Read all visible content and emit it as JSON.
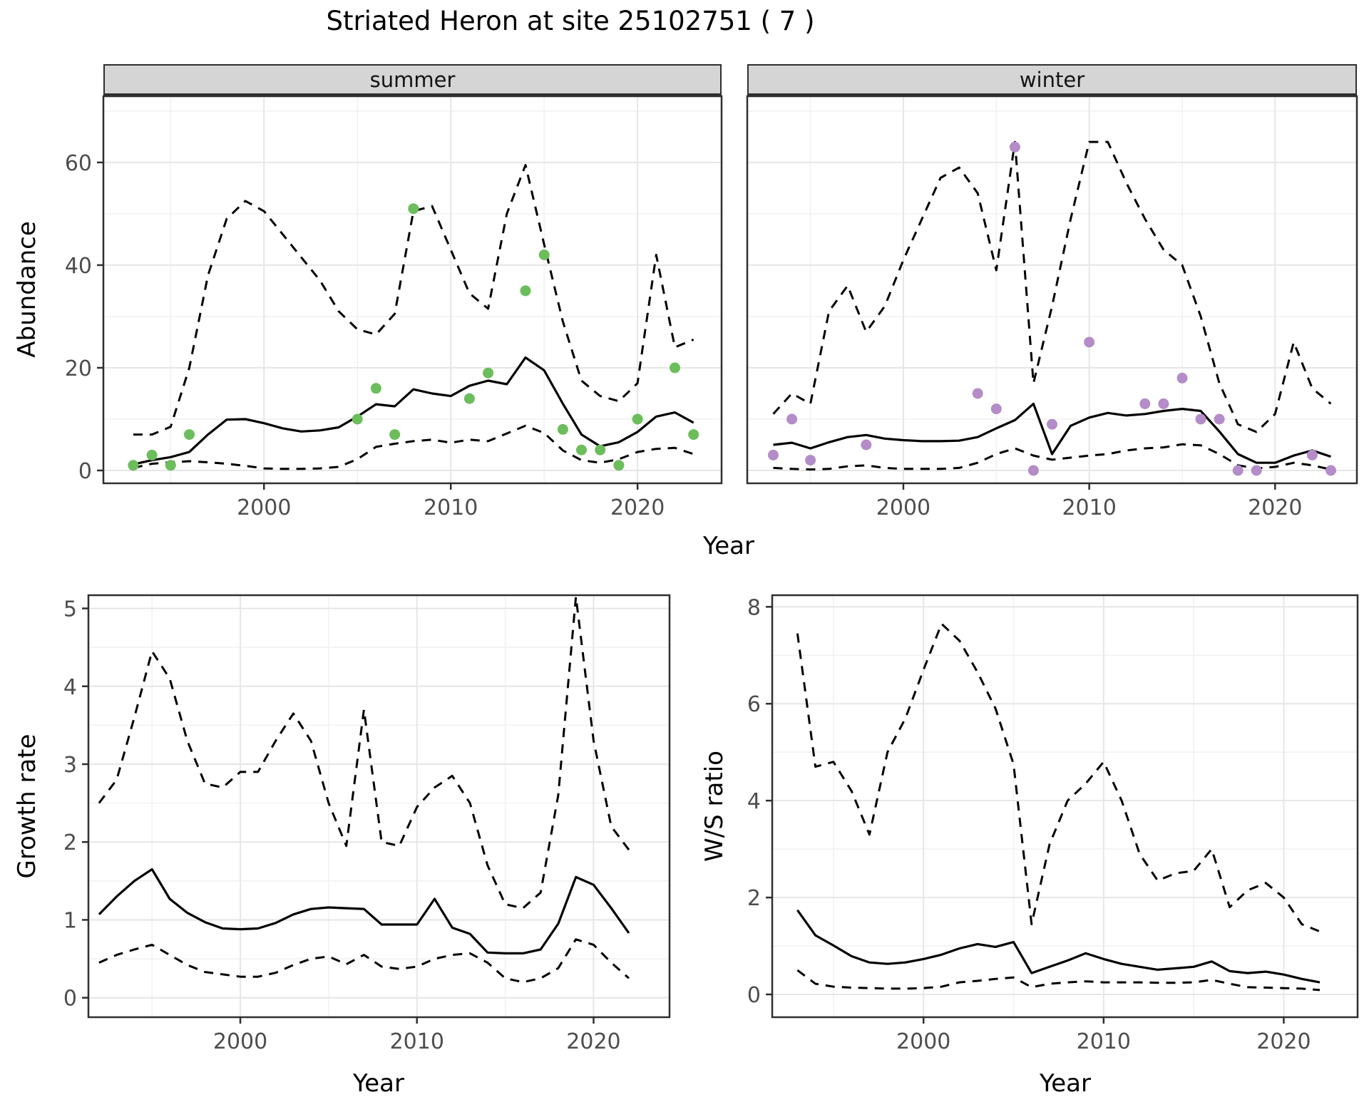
{
  "title": "Striated Heron at site 25102751 ( 7 )",
  "background": "#ffffff",
  "colors": {
    "summer_points": "#6bbe5b",
    "winter_points": "#b48cc8",
    "line": "#000000",
    "grid_major": "#e6e6e6",
    "grid_minor": "#f1f1f1",
    "panel_border": "#2f2f2f",
    "axis_text": "#4d4d4d",
    "strip_fill": "#d5d5d5"
  },
  "layout_labels": {
    "top_x_title": "Year"
  },
  "chart_data": [
    {
      "id": "abundance_summer",
      "type": "line",
      "facet": "summer",
      "xlabel": "Year",
      "ylabel": "Abundance",
      "xlim": [
        1991.4,
        2024.5
      ],
      "ylim": [
        -2.5,
        72.9
      ],
      "x_ticks": [
        2000,
        2010,
        2020
      ],
      "x_tick_labels": [
        "2000",
        "2010",
        "2020"
      ],
      "x_minor": [
        1995,
        2005,
        2015
      ],
      "y_ticks": [
        0,
        20,
        40,
        60
      ],
      "y_tick_labels": [
        "0",
        "20",
        "40",
        "60"
      ],
      "y_minor": [
        10,
        30,
        50,
        70
      ],
      "show_y_tick_labels": true,
      "grid": true,
      "legend": "none",
      "years": [
        1993,
        1994,
        1995,
        1996,
        1997,
        1998,
        1999,
        2000,
        2001,
        2002,
        2003,
        2004,
        2005,
        2006,
        2007,
        2008,
        2009,
        2010,
        2011,
        2012,
        2013,
        2014,
        2015,
        2016,
        2017,
        2018,
        2019,
        2020,
        2021,
        2022,
        2023
      ],
      "series": [
        {
          "name": "mean",
          "style": "solid",
          "values": [
            1.2,
            2.0,
            2.6,
            3.6,
            7.0,
            9.9,
            10.0,
            9.2,
            8.2,
            7.6,
            7.8,
            8.4,
            10.5,
            12.9,
            12.5,
            15.8,
            15.0,
            14.5,
            16.5,
            17.5,
            16.8,
            22.0,
            19.5,
            13.0,
            7.0,
            4.7,
            5.5,
            7.5,
            10.5,
            11.3,
            9.3
          ]
        },
        {
          "name": "upper_ci",
          "style": "dashed",
          "values": [
            7,
            7,
            8.5,
            20,
            38,
            49,
            52.5,
            50.5,
            46,
            41.5,
            37,
            31,
            27.5,
            26.5,
            30.5,
            50.5,
            51.5,
            43,
            34.5,
            31.5,
            50,
            59.5,
            44,
            29,
            17.5,
            14.5,
            13.5,
            17,
            42,
            24,
            25.5
          ]
        },
        {
          "name": "lower_ci",
          "style": "dashed",
          "values": [
            0.5,
            1.3,
            1.6,
            1.8,
            1.6,
            1.3,
            0.9,
            0.4,
            0.3,
            0.3,
            0.4,
            0.7,
            2.2,
            4.6,
            5.2,
            5.7,
            6.0,
            5.4,
            6.0,
            5.7,
            7.2,
            8.7,
            7.3,
            3.9,
            2.0,
            1.5,
            2.2,
            3.6,
            4.2,
            4.4,
            3.2
          ]
        }
      ],
      "points": [
        [
          1993,
          1
        ],
        [
          1994,
          3
        ],
        [
          1995,
          1
        ],
        [
          1996,
          7
        ],
        [
          2005,
          10
        ],
        [
          2006,
          16
        ],
        [
          2007,
          7
        ],
        [
          2008,
          51
        ],
        [
          2011,
          14
        ],
        [
          2012,
          19
        ],
        [
          2014,
          35
        ],
        [
          2015,
          42
        ],
        [
          2016,
          8
        ],
        [
          2017,
          4
        ],
        [
          2018,
          4
        ],
        [
          2019,
          1
        ],
        [
          2020,
          10
        ],
        [
          2022,
          20
        ],
        [
          2023,
          7
        ]
      ],
      "point_color": "#6bbe5b"
    },
    {
      "id": "abundance_winter",
      "type": "line",
      "facet": "winter",
      "xlabel": "Year",
      "ylabel": "Abundance",
      "xlim": [
        1991.6,
        2024.4
      ],
      "ylim": [
        -2.5,
        72.9
      ],
      "x_ticks": [
        2000,
        2010,
        2020
      ],
      "x_tick_labels": [
        "2000",
        "2010",
        "2020"
      ],
      "x_minor": [
        1995,
        2005,
        2015
      ],
      "y_ticks": [
        0,
        20,
        40,
        60
      ],
      "y_tick_labels": [
        "0",
        "20",
        "40",
        "60"
      ],
      "y_minor": [
        10,
        30,
        50,
        70
      ],
      "show_y_tick_labels": false,
      "grid": true,
      "legend": "none",
      "years": [
        1993,
        1994,
        1995,
        1996,
        1997,
        1998,
        1999,
        2000,
        2001,
        2002,
        2003,
        2004,
        2005,
        2006,
        2007,
        2008,
        2009,
        2010,
        2011,
        2012,
        2013,
        2014,
        2015,
        2016,
        2017,
        2018,
        2019,
        2020,
        2021,
        2022,
        2023
      ],
      "series": [
        {
          "name": "mean",
          "style": "solid",
          "values": [
            5.0,
            5.4,
            4.3,
            5.5,
            6.5,
            6.9,
            6.2,
            5.9,
            5.7,
            5.7,
            5.8,
            6.5,
            8.2,
            9.8,
            13.0,
            3.2,
            8.7,
            10.3,
            11.2,
            10.7,
            11.0,
            11.6,
            12.0,
            11.6,
            7.6,
            3.2,
            1.5,
            1.5,
            2.9,
            3.9,
            2.7
          ]
        },
        {
          "name": "upper_ci",
          "style": "dashed",
          "values": [
            11,
            15,
            13,
            31,
            36,
            27,
            32,
            41,
            49,
            57,
            59,
            54,
            39,
            64,
            17,
            32,
            49,
            64,
            64,
            56,
            49,
            43,
            40,
            30,
            17,
            9,
            7.5,
            11,
            25,
            16,
            13
          ]
        },
        {
          "name": "lower_ci",
          "style": "dashed",
          "values": [
            0.5,
            0.3,
            0.2,
            0.3,
            0.8,
            1.0,
            0.5,
            0.3,
            0.3,
            0.3,
            0.5,
            1.5,
            3.2,
            4.3,
            2.9,
            2.1,
            2.5,
            2.9,
            3.2,
            3.9,
            4.3,
            4.5,
            5.1,
            4.9,
            3.2,
            1.0,
            0.4,
            0.7,
            1.5,
            1.0,
            0.2
          ]
        }
      ],
      "points": [
        [
          1993,
          3
        ],
        [
          1994,
          10
        ],
        [
          1995,
          2
        ],
        [
          1998,
          5
        ],
        [
          2004,
          15
        ],
        [
          2005,
          12
        ],
        [
          2006,
          63
        ],
        [
          2007,
          0
        ],
        [
          2008,
          9
        ],
        [
          2010,
          25
        ],
        [
          2013,
          13
        ],
        [
          2014,
          13
        ],
        [
          2015,
          18
        ],
        [
          2016,
          10
        ],
        [
          2017,
          10
        ],
        [
          2018,
          0
        ],
        [
          2019,
          0
        ],
        [
          2022,
          3
        ],
        [
          2023,
          0
        ]
      ],
      "point_color": "#b48cc8"
    },
    {
      "id": "growth_rate",
      "type": "line",
      "facet": "",
      "xlabel": "Year",
      "ylabel": "Growth rate",
      "xlim": [
        1991.4,
        2024.3
      ],
      "ylim": [
        -0.25,
        5.17
      ],
      "x_ticks": [
        2000,
        2010,
        2020
      ],
      "x_tick_labels": [
        "2000",
        "2010",
        "2020"
      ],
      "x_minor": [
        1995,
        2005,
        2015
      ],
      "y_ticks": [
        0,
        1,
        2,
        3,
        4,
        5
      ],
      "y_tick_labels": [
        "0",
        "1",
        "2",
        "3",
        "4",
        "5"
      ],
      "y_minor": [
        0.5,
        1.5,
        2.5,
        3.5,
        4.5
      ],
      "show_y_tick_labels": true,
      "grid": true,
      "legend": "none",
      "years": [
        1992,
        1993,
        1994,
        1995,
        1996,
        1997,
        1998,
        1999,
        2000,
        2001,
        2002,
        2003,
        2004,
        2005,
        2006,
        2007,
        2008,
        2009,
        2010,
        2011,
        2012,
        2013,
        2014,
        2015,
        2016,
        2017,
        2018,
        2019,
        2020,
        2021,
        2022
      ],
      "series": [
        {
          "name": "mean",
          "style": "solid",
          "values": [
            1.07,
            1.3,
            1.5,
            1.65,
            1.27,
            1.09,
            0.97,
            0.89,
            0.88,
            0.89,
            0.96,
            1.07,
            1.14,
            1.16,
            1.15,
            1.14,
            0.94,
            0.94,
            0.94,
            1.27,
            0.9,
            0.82,
            0.58,
            0.57,
            0.57,
            0.62,
            0.95,
            1.55,
            1.45,
            1.15,
            0.83
          ]
        },
        {
          "name": "upper_ci",
          "style": "dashed",
          "values": [
            2.5,
            2.8,
            3.6,
            4.45,
            4.1,
            3.3,
            2.75,
            2.7,
            2.9,
            2.9,
            3.3,
            3.65,
            3.3,
            2.5,
            1.95,
            3.7,
            2.0,
            1.95,
            2.45,
            2.7,
            2.85,
            2.5,
            1.7,
            1.2,
            1.15,
            1.35,
            2.6,
            5.15,
            3.3,
            2.2,
            1.9
          ]
        },
        {
          "name": "lower_ci",
          "style": "dashed",
          "values": [
            0.45,
            0.55,
            0.62,
            0.68,
            0.55,
            0.42,
            0.33,
            0.3,
            0.27,
            0.27,
            0.32,
            0.42,
            0.5,
            0.53,
            0.43,
            0.55,
            0.4,
            0.37,
            0.4,
            0.5,
            0.55,
            0.57,
            0.45,
            0.25,
            0.2,
            0.25,
            0.38,
            0.75,
            0.68,
            0.45,
            0.25
          ]
        }
      ],
      "points": [],
      "point_color": "#000000"
    },
    {
      "id": "ws_ratio",
      "type": "line",
      "facet": "",
      "xlabel": "Year",
      "ylabel": "W/S ratio",
      "xlim": [
        1991.6,
        2024.1
      ],
      "ylim": [
        -0.47,
        8.24
      ],
      "x_ticks": [
        2000,
        2010,
        2020
      ],
      "x_tick_labels": [
        "2000",
        "2010",
        "2020"
      ],
      "x_minor": [
        1995,
        2005,
        2015
      ],
      "y_ticks": [
        0,
        2,
        4,
        6,
        8
      ],
      "y_tick_labels": [
        "0",
        "2",
        "4",
        "6",
        "8"
      ],
      "y_minor": [
        1,
        3,
        5,
        7
      ],
      "show_y_tick_labels": true,
      "grid": true,
      "legend": "none",
      "years": [
        1993,
        1994,
        1995,
        1996,
        1997,
        1998,
        1999,
        2000,
        2001,
        2002,
        2003,
        2004,
        2005,
        2006,
        2007,
        2008,
        2009,
        2010,
        2011,
        2012,
        2013,
        2014,
        2015,
        2016,
        2017,
        2018,
        2019,
        2020,
        2021,
        2022
      ],
      "series": [
        {
          "name": "mean",
          "style": "solid",
          "values": [
            1.74,
            1.22,
            1.01,
            0.79,
            0.66,
            0.63,
            0.66,
            0.73,
            0.82,
            0.95,
            1.04,
            0.98,
            1.08,
            0.44,
            0.57,
            0.7,
            0.85,
            0.73,
            0.63,
            0.57,
            0.51,
            0.54,
            0.57,
            0.68,
            0.48,
            0.44,
            0.47,
            0.41,
            0.32,
            0.25
          ]
        },
        {
          "name": "upper_ci",
          "style": "dashed",
          "values": [
            7.45,
            4.7,
            4.8,
            4.2,
            3.3,
            5.0,
            5.7,
            6.7,
            7.65,
            7.3,
            6.65,
            5.9,
            4.75,
            1.45,
            3.1,
            4.0,
            4.35,
            4.8,
            4.0,
            2.9,
            2.35,
            2.5,
            2.55,
            3.0,
            1.8,
            2.15,
            2.3,
            2.0,
            1.45,
            1.3
          ]
        },
        {
          "name": "lower_ci",
          "style": "dashed",
          "values": [
            0.5,
            0.22,
            0.16,
            0.14,
            0.13,
            0.12,
            0.12,
            0.13,
            0.16,
            0.25,
            0.28,
            0.32,
            0.35,
            0.15,
            0.22,
            0.25,
            0.27,
            0.25,
            0.25,
            0.25,
            0.24,
            0.24,
            0.25,
            0.3,
            0.22,
            0.15,
            0.14,
            0.13,
            0.12,
            0.09
          ]
        }
      ],
      "points": [],
      "point_color": "#000000"
    }
  ]
}
